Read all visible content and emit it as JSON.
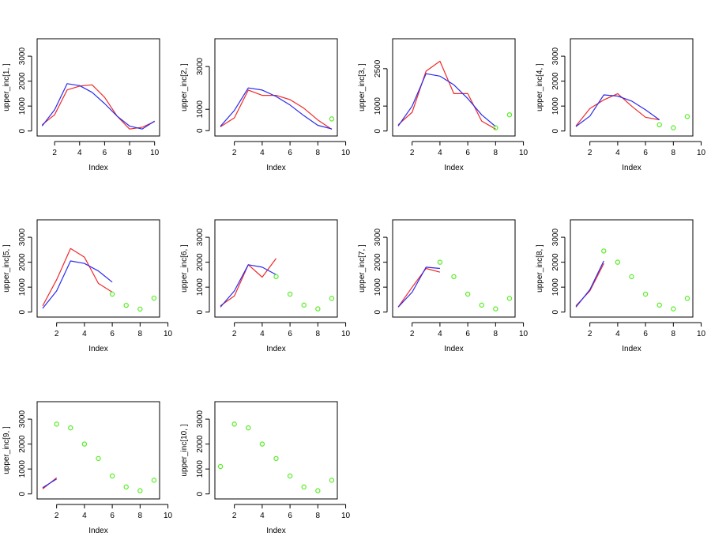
{
  "colors": {
    "series_red": "#ee2a2a",
    "series_blue": "#2a2aee",
    "points_green": "#55ee22",
    "axis": "#000000"
  },
  "chart_data": [
    {
      "type": "line",
      "xlabel": "Index",
      "ylabel": "upper_inc[1, ]",
      "xlim": [
        0.6,
        10.4
      ],
      "ylim": [
        -200,
        3700
      ],
      "xticks": [
        2,
        4,
        6,
        8,
        10
      ],
      "yticks": [
        0,
        1000,
        2000,
        3000
      ],
      "series": [
        {
          "color": "red",
          "x": [
            1,
            2,
            3,
            4,
            5,
            6,
            7,
            8,
            9,
            10
          ],
          "y": [
            250,
            650,
            1650,
            1800,
            1850,
            1350,
            600,
            80,
            150,
            380
          ]
        },
        {
          "color": "blue",
          "x": [
            1,
            2,
            3,
            4,
            5,
            6,
            7,
            8,
            9,
            10
          ],
          "y": [
            200,
            850,
            1900,
            1820,
            1550,
            1100,
            600,
            200,
            80,
            400
          ]
        }
      ],
      "points": {
        "x": [],
        "y": []
      }
    },
    {
      "type": "line",
      "xlabel": "Index",
      "ylabel": "upper_inc[2, ]",
      "xlim": [
        0.6,
        9.4
      ],
      "ylim": [
        -250,
        4300
      ],
      "xticks": [
        2,
        4,
        6,
        8,
        10
      ],
      "yticks": [
        0,
        1000,
        3000
      ],
      "series": [
        {
          "color": "red",
          "x": [
            1,
            2,
            3,
            4,
            5,
            6,
            7,
            8,
            9
          ],
          "y": [
            180,
            600,
            1900,
            1650,
            1650,
            1450,
            1050,
            500,
            60
          ]
        },
        {
          "color": "blue",
          "x": [
            1,
            2,
            3,
            4,
            5,
            6,
            7,
            8,
            9
          ],
          "y": [
            200,
            950,
            2000,
            1900,
            1600,
            1200,
            700,
            250,
            80
          ]
        }
      ],
      "points": {
        "x": [
          9
        ],
        "y": [
          550
        ]
      }
    },
    {
      "type": "line",
      "xlabel": "Index",
      "ylabel": "upper_inc[3, ]",
      "xlim": [
        0.6,
        9.4
      ],
      "ylim": [
        -200,
        3700
      ],
      "xticks": [
        2,
        4,
        6,
        8,
        10
      ],
      "yticks": [
        0,
        1000,
        2500
      ],
      "series": [
        {
          "color": "red",
          "x": [
            1,
            2,
            3,
            4,
            5,
            6,
            7,
            8
          ],
          "y": [
            250,
            750,
            2400,
            2800,
            1500,
            1500,
            400,
            80
          ]
        },
        {
          "color": "blue",
          "x": [
            1,
            2,
            3,
            4,
            5,
            6,
            7,
            8
          ],
          "y": [
            200,
            1000,
            2300,
            2200,
            1850,
            1300,
            650,
            180
          ]
        }
      ],
      "points": {
        "x": [
          8,
          9
        ],
        "y": [
          130,
          650
        ]
      }
    },
    {
      "type": "line",
      "xlabel": "Index",
      "ylabel": "upper_inc[4, ]",
      "xlim": [
        0.6,
        9.4
      ],
      "ylim": [
        -200,
        3700
      ],
      "xticks": [
        2,
        4,
        6,
        8,
        10
      ],
      "yticks": [
        0,
        1000,
        2000,
        3000
      ],
      "series": [
        {
          "color": "red",
          "x": [
            1,
            2,
            3,
            4,
            5,
            6,
            7
          ],
          "y": [
            200,
            900,
            1250,
            1500,
            1000,
            550,
            450
          ]
        },
        {
          "color": "blue",
          "x": [
            1,
            2,
            3,
            4,
            5,
            6,
            7
          ],
          "y": [
            180,
            600,
            1450,
            1400,
            1200,
            850,
            450
          ]
        }
      ],
      "points": {
        "x": [
          7,
          8,
          9
        ],
        "y": [
          250,
          130,
          580
        ]
      }
    },
    {
      "type": "line",
      "xlabel": "Index",
      "ylabel": "upper_inc[5, ]",
      "xlim": [
        0.6,
        9.4
      ],
      "ylim": [
        -200,
        3700
      ],
      "xticks": [
        2,
        4,
        6,
        8,
        10
      ],
      "yticks": [
        0,
        1000,
        2000,
        3000
      ],
      "series": [
        {
          "color": "red",
          "x": [
            1,
            2,
            3,
            4,
            5,
            6
          ],
          "y": [
            250,
            1300,
            2550,
            2200,
            1150,
            800
          ]
        },
        {
          "color": "blue",
          "x": [
            1,
            2,
            3,
            4,
            5,
            6
          ],
          "y": [
            150,
            850,
            2050,
            1950,
            1650,
            1200
          ]
        }
      ],
      "points": {
        "x": [
          6,
          7,
          8,
          9
        ],
        "y": [
          720,
          270,
          120,
          560
        ]
      }
    },
    {
      "type": "line",
      "xlabel": "Index",
      "ylabel": "upper_inc[6, ]",
      "xlim": [
        0.6,
        9.4
      ],
      "ylim": [
        -200,
        3700
      ],
      "xticks": [
        2,
        4,
        6,
        8,
        10
      ],
      "yticks": [
        0,
        1000,
        2000,
        3000
      ],
      "series": [
        {
          "color": "red",
          "x": [
            1,
            2,
            3,
            4,
            5
          ],
          "y": [
            250,
            650,
            1900,
            1400,
            2150
          ]
        },
        {
          "color": "blue",
          "x": [
            1,
            2,
            3,
            4,
            5
          ],
          "y": [
            200,
            850,
            1900,
            1800,
            1500
          ]
        }
      ],
      "points": {
        "x": [
          5,
          6,
          7,
          8,
          9
        ],
        "y": [
          1420,
          720,
          280,
          130,
          550
        ]
      }
    },
    {
      "type": "line",
      "xlabel": "Index",
      "ylabel": "upper_inc[7, ]",
      "xlim": [
        0.6,
        9.4
      ],
      "ylim": [
        -200,
        3700
      ],
      "xticks": [
        2,
        4,
        6,
        8,
        10
      ],
      "yticks": [
        0,
        1000,
        2000,
        3000
      ],
      "series": [
        {
          "color": "red",
          "x": [
            1,
            2,
            3,
            4
          ],
          "y": [
            200,
            1000,
            1750,
            1600
          ]
        },
        {
          "color": "blue",
          "x": [
            1,
            2,
            3,
            4
          ],
          "y": [
            200,
            800,
            1800,
            1750
          ]
        }
      ],
      "points": {
        "x": [
          4,
          5,
          6,
          7,
          8,
          9
        ],
        "y": [
          2000,
          1420,
          720,
          280,
          130,
          550
        ]
      }
    },
    {
      "type": "line",
      "xlabel": "Index",
      "ylabel": "upper_inc[8, ]",
      "xlim": [
        0.6,
        9.4
      ],
      "ylim": [
        -200,
        3700
      ],
      "xticks": [
        2,
        4,
        6,
        8,
        10
      ],
      "yticks": [
        0,
        1000,
        2000,
        3000
      ],
      "series": [
        {
          "color": "red",
          "x": [
            1,
            2,
            3
          ],
          "y": [
            250,
            850,
            1950
          ]
        },
        {
          "color": "blue",
          "x": [
            1,
            2,
            3
          ],
          "y": [
            200,
            900,
            2050
          ]
        }
      ],
      "points": {
        "x": [
          3,
          4,
          5,
          6,
          7,
          8,
          9
        ],
        "y": [
          2450,
          2000,
          1420,
          720,
          280,
          130,
          550
        ]
      }
    },
    {
      "type": "line",
      "xlabel": "Index",
      "ylabel": "upper_inc[9, ]",
      "xlim": [
        0.6,
        9.4
      ],
      "ylim": [
        -200,
        3700
      ],
      "xticks": [
        2,
        4,
        6,
        8,
        10
      ],
      "yticks": [
        0,
        1000,
        2000,
        3000
      ],
      "series": [
        {
          "color": "red",
          "x": [
            1,
            2
          ],
          "y": [
            200,
            650
          ]
        },
        {
          "color": "blue",
          "x": [
            1,
            2
          ],
          "y": [
            250,
            600
          ]
        }
      ],
      "points": {
        "x": [
          2,
          3,
          4,
          5,
          6,
          7,
          8,
          9
        ],
        "y": [
          2800,
          2650,
          2000,
          1420,
          720,
          280,
          130,
          550
        ]
      }
    },
    {
      "type": "scatter",
      "xlabel": "Index",
      "ylabel": "upper_inc[10, ]",
      "xlim": [
        0.6,
        9.4
      ],
      "ylim": [
        -200,
        3700
      ],
      "xticks": [
        2,
        4,
        6,
        8,
        10
      ],
      "yticks": [
        0,
        1000,
        2000,
        3000
      ],
      "series": [],
      "points": {
        "x": [
          1,
          2,
          3,
          4,
          5,
          6,
          7,
          8,
          9
        ],
        "y": [
          1100,
          2800,
          2650,
          2000,
          1420,
          720,
          280,
          130,
          550
        ]
      }
    }
  ]
}
